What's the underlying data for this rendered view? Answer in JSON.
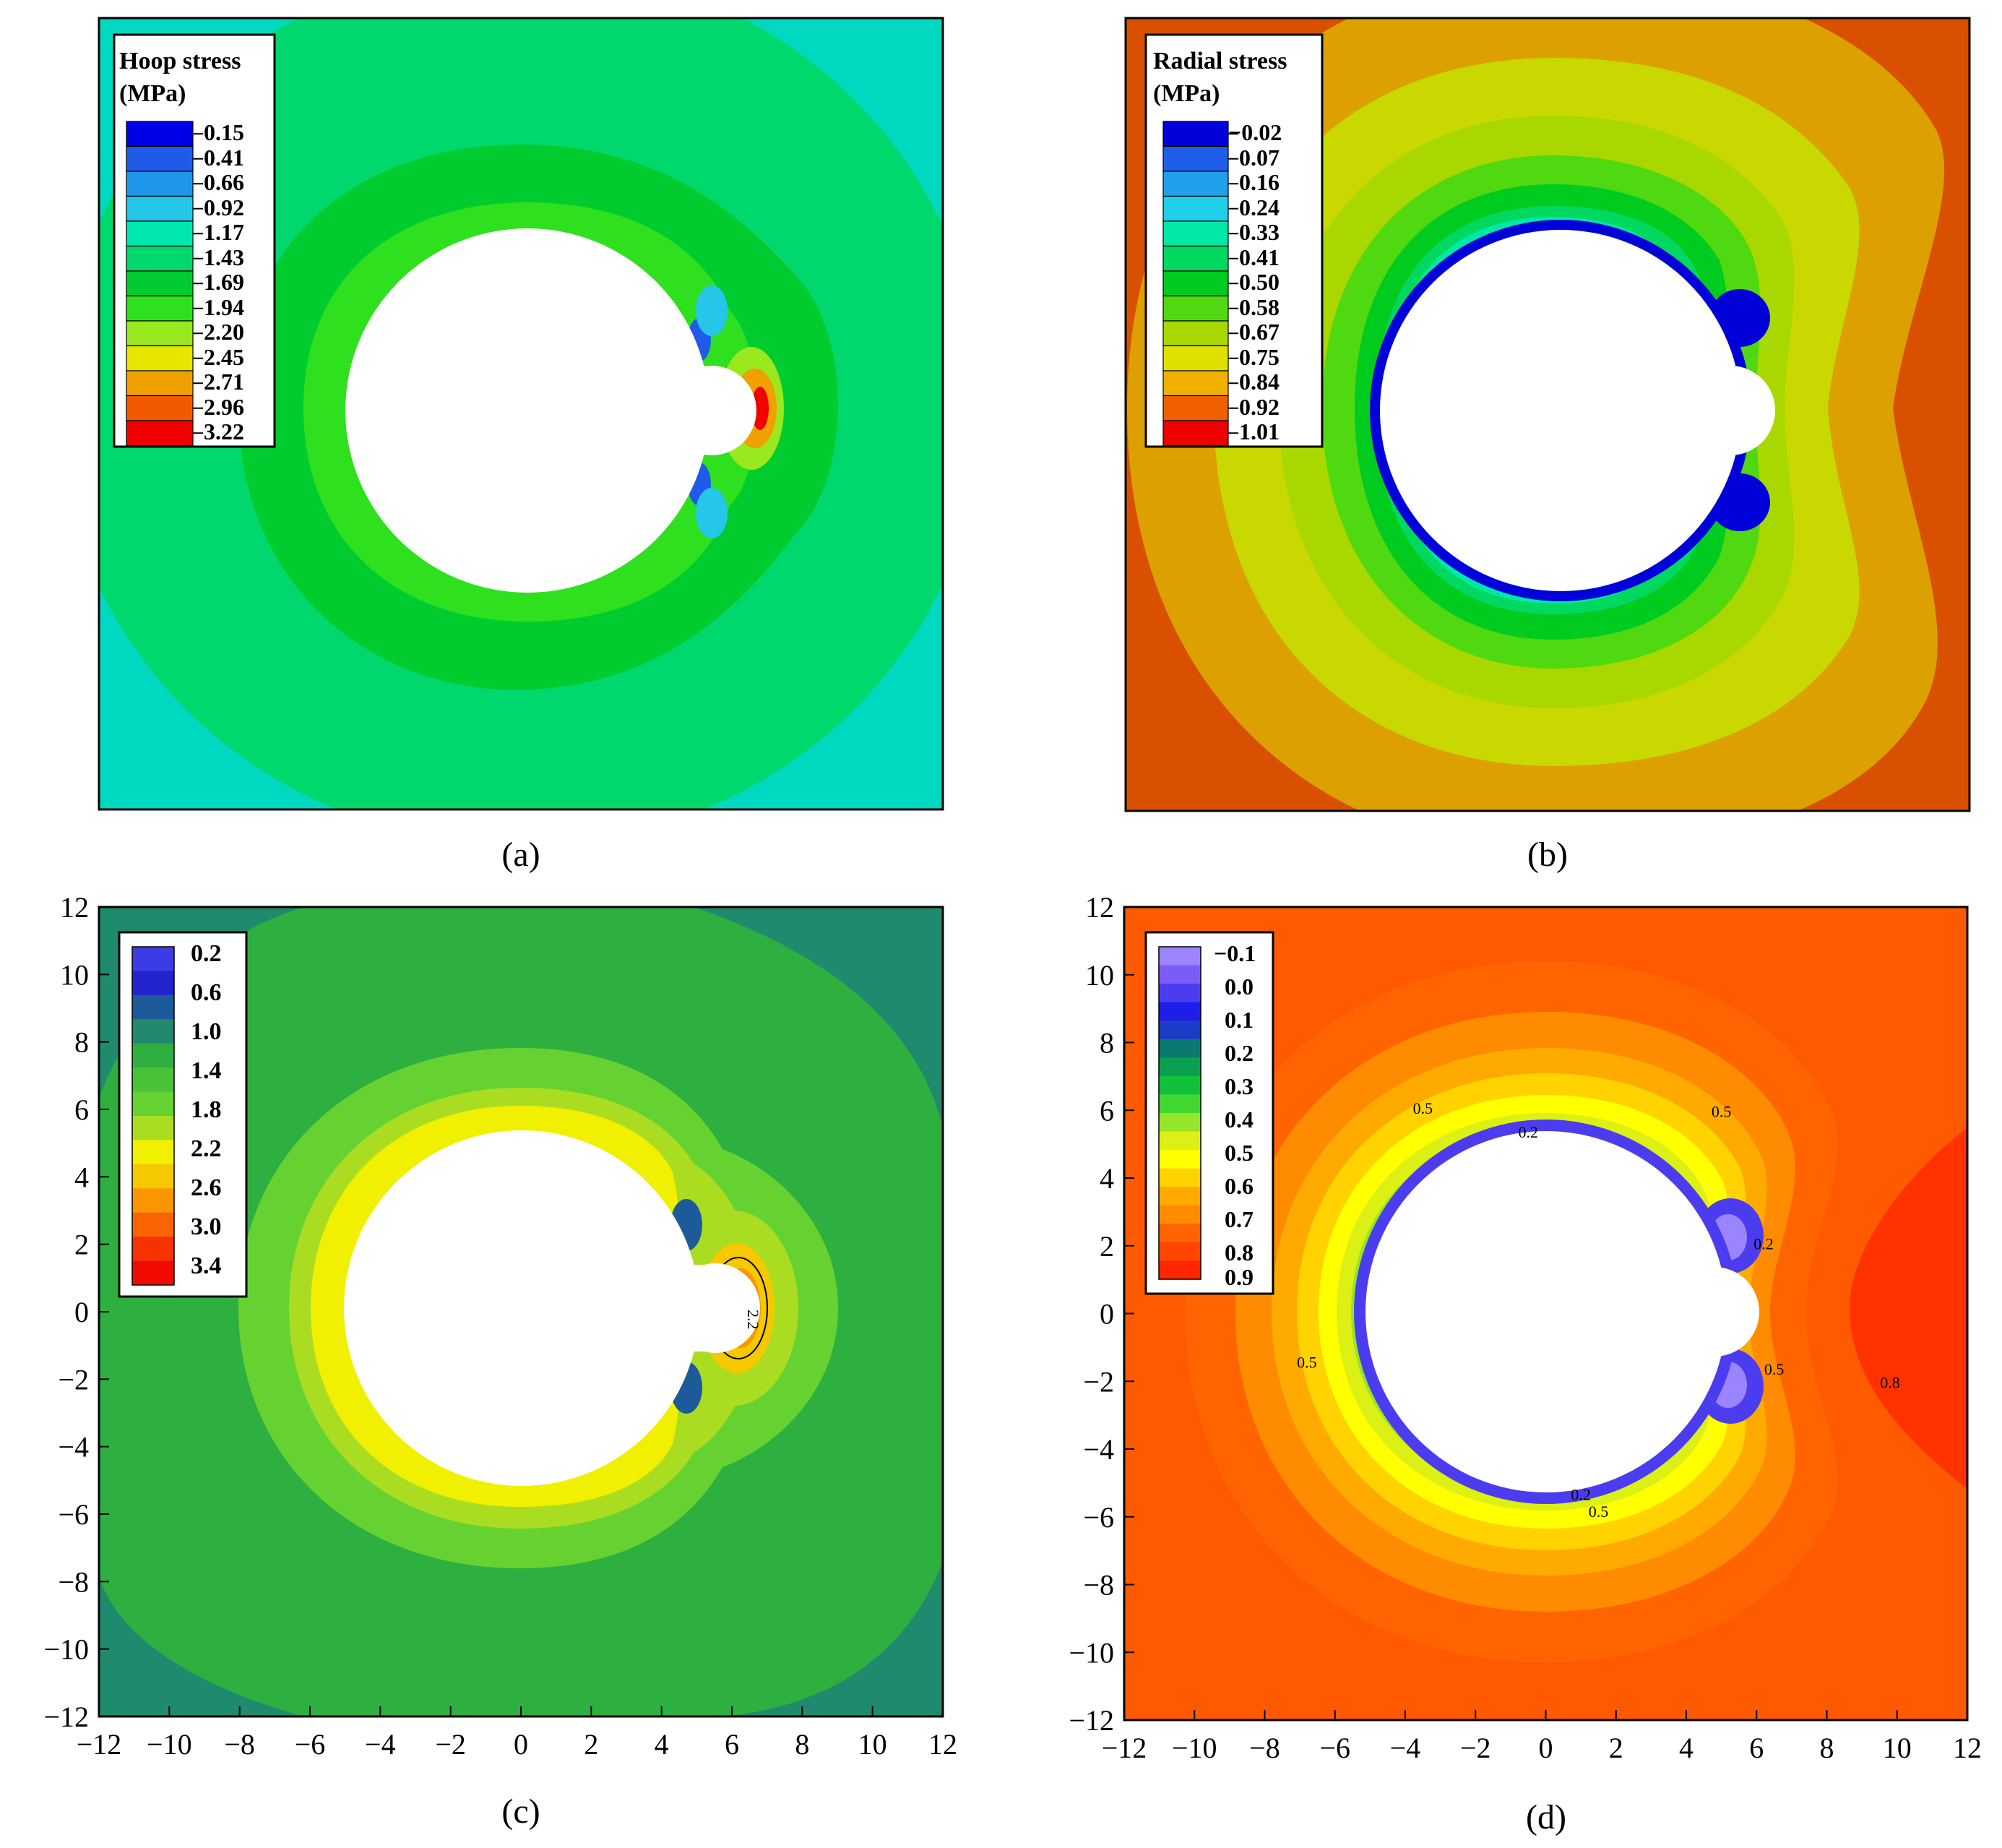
{
  "colors": {
    "a_scale": [
      "#0000e6",
      "#1f5ae8",
      "#1f96ea",
      "#25c6e8",
      "#00e8b0",
      "#00d86e",
      "#00cc30",
      "#2ee01e",
      "#9ae81e",
      "#e6e600",
      "#f0a000",
      "#f25a00",
      "#f20000"
    ],
    "b_scale": [
      "#0000d8",
      "#1e5ee8",
      "#20a0ec",
      "#20d0e8",
      "#00e8a8",
      "#00d860",
      "#00cc20",
      "#50d810",
      "#a8d800",
      "#e0e000",
      "#f0b000",
      "#f06000",
      "#f00000"
    ],
    "c_scale": [
      "#3c3ce6",
      "#2323cc",
      "#1c5a9a",
      "#23886e",
      "#2eb040",
      "#49c238",
      "#66d232",
      "#aadd22",
      "#f0f000",
      "#f5c800",
      "#fa9600",
      "#fa6400",
      "#f53200",
      "#f00a00"
    ],
    "d_scale": [
      "#9d84ff",
      "#7c5cf7",
      "#4c3cf0",
      "#1e1ee8",
      "#1a3cc8",
      "#0a7a6e",
      "#0aa050",
      "#10c23a",
      "#40d830",
      "#96e628",
      "#dcf016",
      "#ffff00",
      "#ffd200",
      "#ffaa00",
      "#ff8c00",
      "#ff6400",
      "#ff4600",
      "#ff2600"
    ],
    "a_bg": "#00d86e",
    "a_corner": "#00d8c0",
    "b_bg": "#d85000",
    "b_mid": "#dca000",
    "c_bg": "#2eb040",
    "c_corner": "#208a6e",
    "d_bg": "#ff5a00",
    "d_right": "#ff3200"
  },
  "panels": {
    "a": {
      "caption": "(a)",
      "legend_title_line1": "Hoop stress",
      "legend_title_line2": "(MPa)",
      "legend_labels": [
        "0.15",
        "0.41",
        "0.66",
        "0.92",
        "1.17",
        "1.43",
        "1.69",
        "1.94",
        "2.20",
        "2.45",
        "2.71",
        "2.96",
        "3.22"
      ]
    },
    "b": {
      "caption": "(b)",
      "legend_title_line1": "Radial stress",
      "legend_title_line2": "(MPa)",
      "legend_labels": [
        "−0.02",
        "0.07",
        "0.16",
        "0.24",
        "0.33",
        "0.41",
        "0.50",
        "0.58",
        "0.67",
        "0.75",
        "0.84",
        "0.92",
        "1.01"
      ]
    },
    "c": {
      "caption": "(c)",
      "legend_labels": [
        "0.2",
        "0.6",
        "1.0",
        "1.4",
        "1.8",
        "2.2",
        "2.6",
        "3.0",
        "3.4"
      ],
      "contour_labels": [
        "2.2"
      ]
    },
    "d": {
      "caption": "(d)",
      "legend_labels": [
        "−0.1",
        "0.0",
        "0.1",
        "0.2",
        "0.3",
        "0.4",
        "0.5",
        "0.6",
        "0.7",
        "0.8",
        "0.9"
      ],
      "contour_labels": [
        "0.5",
        "0.2",
        "0.5",
        "0.2",
        "0.5",
        "0.5",
        "0.2",
        "0.5",
        "0.8"
      ]
    }
  },
  "chart_data": [
    {
      "panel": "a",
      "type": "heatmap",
      "title": "Hoop stress (MPa)",
      "colorbar_ticks": [
        0.15,
        0.41,
        0.66,
        0.92,
        1.17,
        1.43,
        1.69,
        1.94,
        2.2,
        2.45,
        2.71,
        2.96,
        3.22
      ]
    },
    {
      "panel": "b",
      "type": "heatmap",
      "title": "Radial stress (MPa)",
      "colorbar_ticks": [
        -0.02,
        0.07,
        0.16,
        0.24,
        0.33,
        0.41,
        0.5,
        0.58,
        0.67,
        0.75,
        0.84,
        0.92,
        1.01
      ]
    },
    {
      "panel": "c",
      "type": "heatmap",
      "colorbar_ticks": [
        0.2,
        0.6,
        1.0,
        1.4,
        1.8,
        2.2,
        2.6,
        3.0,
        3.4
      ],
      "xlim": [
        -12,
        12
      ],
      "ylim": [
        -12,
        12
      ],
      "xticks": [
        "−12",
        "−10",
        "−8",
        "−6",
        "−4",
        "−2",
        "0",
        "2",
        "4",
        "6",
        "8",
        "10",
        "12"
      ],
      "yticks": [
        "12",
        "10",
        "8",
        "6",
        "4",
        "2",
        "0",
        "−2",
        "−4",
        "−6",
        "−8",
        "−10",
        "−12"
      ],
      "tunnel": {
        "main_circle": {
          "cx": 0,
          "cy": 0,
          "r": 5.1
        },
        "small_arc": {
          "cx": 5.6,
          "cy": 0,
          "r": 1.35
        }
      },
      "contours": [
        {
          "level": 2.2,
          "label_at": [
            6.3,
            0
          ]
        }
      ]
    },
    {
      "panel": "d",
      "type": "heatmap",
      "colorbar_ticks": [
        -0.1,
        0.0,
        0.1,
        0.2,
        0.3,
        0.4,
        0.5,
        0.6,
        0.7,
        0.8,
        0.9
      ],
      "xlim": [
        -12,
        12
      ],
      "ylim": [
        -12,
        12
      ],
      "xticks": [
        "−12",
        "−10",
        "−8",
        "−6",
        "−4",
        "−2",
        "0",
        "2",
        "4",
        "6",
        "8",
        "10",
        "12"
      ],
      "yticks": [
        "12",
        "10",
        "8",
        "6",
        "4",
        "2",
        "0",
        "−2",
        "−4",
        "−6",
        "−8",
        "−10",
        "−12"
      ],
      "tunnel": {
        "main_circle": {
          "cx": 0,
          "cy": 0,
          "r": 5.1
        },
        "small_arc": {
          "cx": 5.6,
          "cy": 0,
          "r": 1.35
        }
      },
      "contours": [
        {
          "level": 0.5,
          "label_at": [
            -3.5,
            5.9
          ]
        },
        {
          "level": 0.2,
          "label_at": [
            -0.5,
            5.2
          ]
        },
        {
          "level": 0.5,
          "label_at": [
            5.0,
            5.8
          ]
        },
        {
          "level": 0.2,
          "label_at": [
            6.2,
            1.9
          ]
        },
        {
          "level": 0.5,
          "label_at": [
            -6.8,
            -1.6
          ]
        },
        {
          "level": 0.5,
          "label_at": [
            6.5,
            -1.8
          ]
        },
        {
          "level": 0.2,
          "label_at": [
            1.0,
            -5.5
          ]
        },
        {
          "level": 0.5,
          "label_at": [
            1.5,
            -6.0
          ]
        },
        {
          "level": 0.8,
          "label_at": [
            9.8,
            -2.2
          ]
        }
      ]
    }
  ]
}
